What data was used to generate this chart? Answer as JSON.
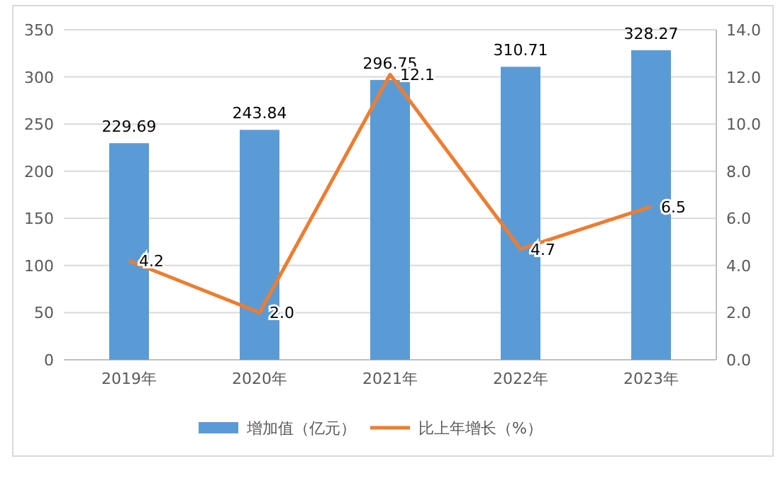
{
  "chart_data": {
    "type": "bar",
    "categories": [
      "2019年",
      "2020年",
      "2021年",
      "2022年",
      "2023年"
    ],
    "series": [
      {
        "name": "增加值（亿元）",
        "color": "#5b9bd5",
        "values": [
          229.69,
          243.84,
          296.75,
          310.71,
          328.27
        ],
        "value_labels": [
          "229.69",
          "243.84",
          "296.75",
          "310.71",
          "328.27"
        ]
      },
      {
        "name": "比上年增长（%）",
        "type": "line",
        "axis": "y2",
        "color": "#ed7d31",
        "values": [
          4.2,
          2.0,
          12.1,
          4.7,
          6.5
        ],
        "value_labels": [
          "4.2",
          "2.0",
          "12.1",
          "4.7",
          "6.5"
        ]
      }
    ],
    "ylim": [
      0,
      350
    ],
    "yticks": [
      0,
      50,
      100,
      150,
      200,
      250,
      300,
      350
    ],
    "y2lim": [
      0,
      14
    ],
    "y2ticks": [
      {
        "value": 0,
        "label": "0.0"
      },
      {
        "value": 2,
        "label": "2.0"
      },
      {
        "value": 4,
        "label": "4.0"
      },
      {
        "value": 6,
        "label": "6.0"
      },
      {
        "value": 8,
        "label": "8.0"
      },
      {
        "value": 10,
        "label": "10.0"
      },
      {
        "value": 12,
        "label": "12.0"
      },
      {
        "value": 14,
        "label": "14.0"
      }
    ],
    "grid": "y",
    "legend": "bottom",
    "marker": "none",
    "line_style": "solid"
  }
}
